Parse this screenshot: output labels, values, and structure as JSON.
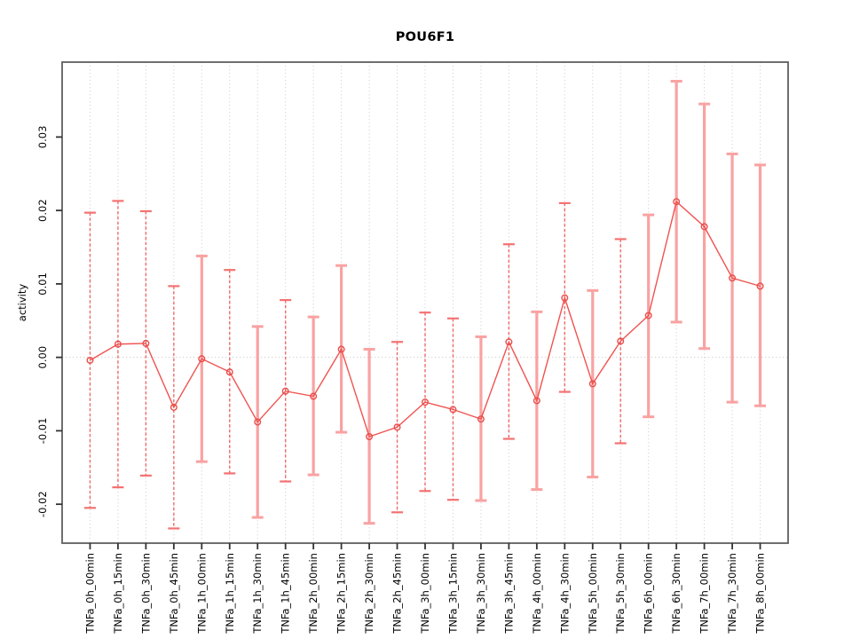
{
  "figure": {
    "title": "POU6F1"
  },
  "chart_data": {
    "type": "line",
    "title": "POU6F1",
    "xlabel": "",
    "ylabel": "activity",
    "legend": "none",
    "grid": {
      "vertical_dotted_per_category": true,
      "horizontal_zero_dotted": true
    },
    "ylim": [
      -0.0253,
      0.0402
    ],
    "yticks": [
      -0.02,
      -0.01,
      0.0,
      0.01,
      0.02,
      0.03
    ],
    "ytick_labels": [
      "-0.02",
      "-0.01",
      "0.00",
      "0.01",
      "0.02",
      "0.03"
    ],
    "categories": [
      "TNFa_0h_00min",
      "TNFa_0h_15min",
      "TNFa_0h_30min",
      "TNFa_0h_45min",
      "TNFa_1h_00min",
      "TNFa_1h_15min",
      "TNFa_1h_30min",
      "TNFa_1h_45min",
      "TNFa_2h_00min",
      "TNFa_2h_15min",
      "TNFa_2h_30min",
      "TNFa_2h_45min",
      "TNFa_3h_00min",
      "TNFa_3h_15min",
      "TNFa_3h_30min",
      "TNFa_3h_45min",
      "TNFa_4h_00min",
      "TNFa_4h_30min",
      "TNFa_5h_00min",
      "TNFa_5h_30min",
      "TNFa_6h_00min",
      "TNFa_6h_30min",
      "TNFa_7h_00min",
      "TNFa_7h_30min",
      "TNFa_8h_00min"
    ],
    "series": [
      {
        "name": "activity",
        "marker": "open-circle",
        "values": [
          -0.0004,
          0.0018,
          0.0019,
          -0.0068,
          -0.0002,
          -0.002,
          -0.0088,
          -0.0046,
          -0.0053,
          0.0011,
          -0.0108,
          -0.0095,
          -0.0061,
          -0.0071,
          -0.0084,
          0.0021,
          -0.0059,
          0.0081,
          -0.0036,
          0.0022,
          0.0057,
          0.0212,
          0.0178,
          0.0108,
          0.0097
        ],
        "upper": [
          0.0197,
          0.0213,
          0.0199,
          0.0097,
          0.0138,
          0.0119,
          0.0042,
          0.0078,
          0.0055,
          0.0125,
          0.0011,
          0.0021,
          0.0061,
          0.0053,
          0.0028,
          0.0154,
          0.0062,
          0.021,
          0.0091,
          0.0161,
          0.0194,
          0.0376,
          0.0345,
          0.0277,
          0.0262
        ],
        "lower": [
          -0.0205,
          -0.0177,
          -0.0161,
          -0.0233,
          -0.0142,
          -0.0158,
          -0.0218,
          -0.0169,
          -0.016,
          -0.0102,
          -0.0226,
          -0.0211,
          -0.0182,
          -0.0194,
          -0.0195,
          -0.0111,
          -0.018,
          -0.0047,
          -0.0163,
          -0.0117,
          -0.0081,
          0.0048,
          0.0012,
          -0.0061,
          -0.0066
        ],
        "bar_style": [
          "dashed",
          "dashed",
          "dashed",
          "dashed",
          "solid",
          "dashed",
          "solid",
          "dashed",
          "solid",
          "solid",
          "solid",
          "dashed",
          "dashed",
          "dashed",
          "solid",
          "dashed",
          "solid",
          "dashed",
          "solid",
          "dashed",
          "solid",
          "solid",
          "solid",
          "solid",
          "solid"
        ]
      }
    ],
    "colors": {
      "series_line": "#ef5350",
      "point_stroke": "#e84f4c",
      "errorbar_solid": "#f9a2a2",
      "errorbar_dashed": "#f06a6a",
      "cap_solid": "#f9a2a2",
      "cap_dashed": "#f47272",
      "gridline": "#d4d4d4",
      "zero_line": "#c9c9c9",
      "frame": "#5f5f5f",
      "tick": "#333333",
      "text": "#000000"
    }
  }
}
